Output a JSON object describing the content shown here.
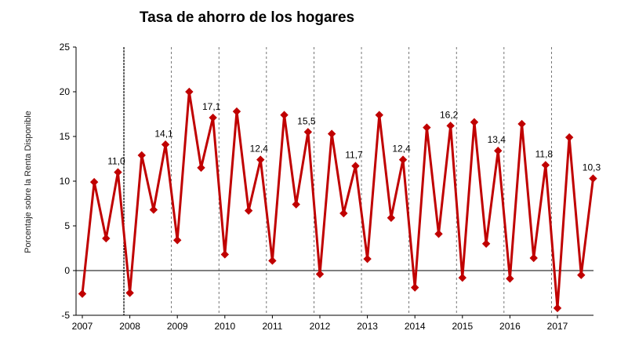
{
  "chart_data": {
    "type": "line",
    "title": "Tasa de ahorro de los hogares",
    "ylabel": "Porcentaje sobre la Renta Disponible",
    "xlabel": "",
    "ylim": [
      -5,
      25
    ],
    "yticks": [
      "-5",
      "0",
      "5",
      "10",
      "15",
      "20",
      "25"
    ],
    "years": [
      "2007",
      "2008",
      "2009",
      "2010",
      "2011",
      "2012",
      "2013",
      "2014",
      "2015",
      "2016",
      "2017"
    ],
    "series": [
      {
        "color": "#c00000",
        "values": [
          -2.6,
          9.9,
          3.6,
          11.0,
          -2.5,
          12.9,
          6.8,
          14.1,
          3.4,
          20.0,
          11.5,
          17.1,
          1.8,
          17.8,
          6.7,
          12.4,
          1.1,
          17.4,
          7.4,
          15.5,
          -0.4,
          15.3,
          6.4,
          11.7,
          1.3,
          17.4,
          5.9,
          12.4,
          -1.9,
          16.0,
          4.1,
          16.2,
          -0.8,
          16.6,
          3.0,
          13.4,
          -0.9,
          16.4,
          1.4,
          11.8,
          -4.2,
          14.9,
          -0.5,
          10.3
        ]
      }
    ],
    "data_labels": [
      {
        "index": 3,
        "text": "11,0"
      },
      {
        "index": 7,
        "text": "14,1"
      },
      {
        "index": 11,
        "text": "17,1"
      },
      {
        "index": 15,
        "text": "12,4"
      },
      {
        "index": 19,
        "text": "15,5"
      },
      {
        "index": 23,
        "text": "11,7"
      },
      {
        "index": 27,
        "text": "12,4"
      },
      {
        "index": 31,
        "text": "16,2"
      },
      {
        "index": 35,
        "text": "13,4"
      },
      {
        "index": 39,
        "text": "11,8"
      },
      {
        "index": 43,
        "text": "10,3"
      }
    ],
    "grid": {
      "vertical_year_separators": true,
      "horizontal": false
    }
  }
}
